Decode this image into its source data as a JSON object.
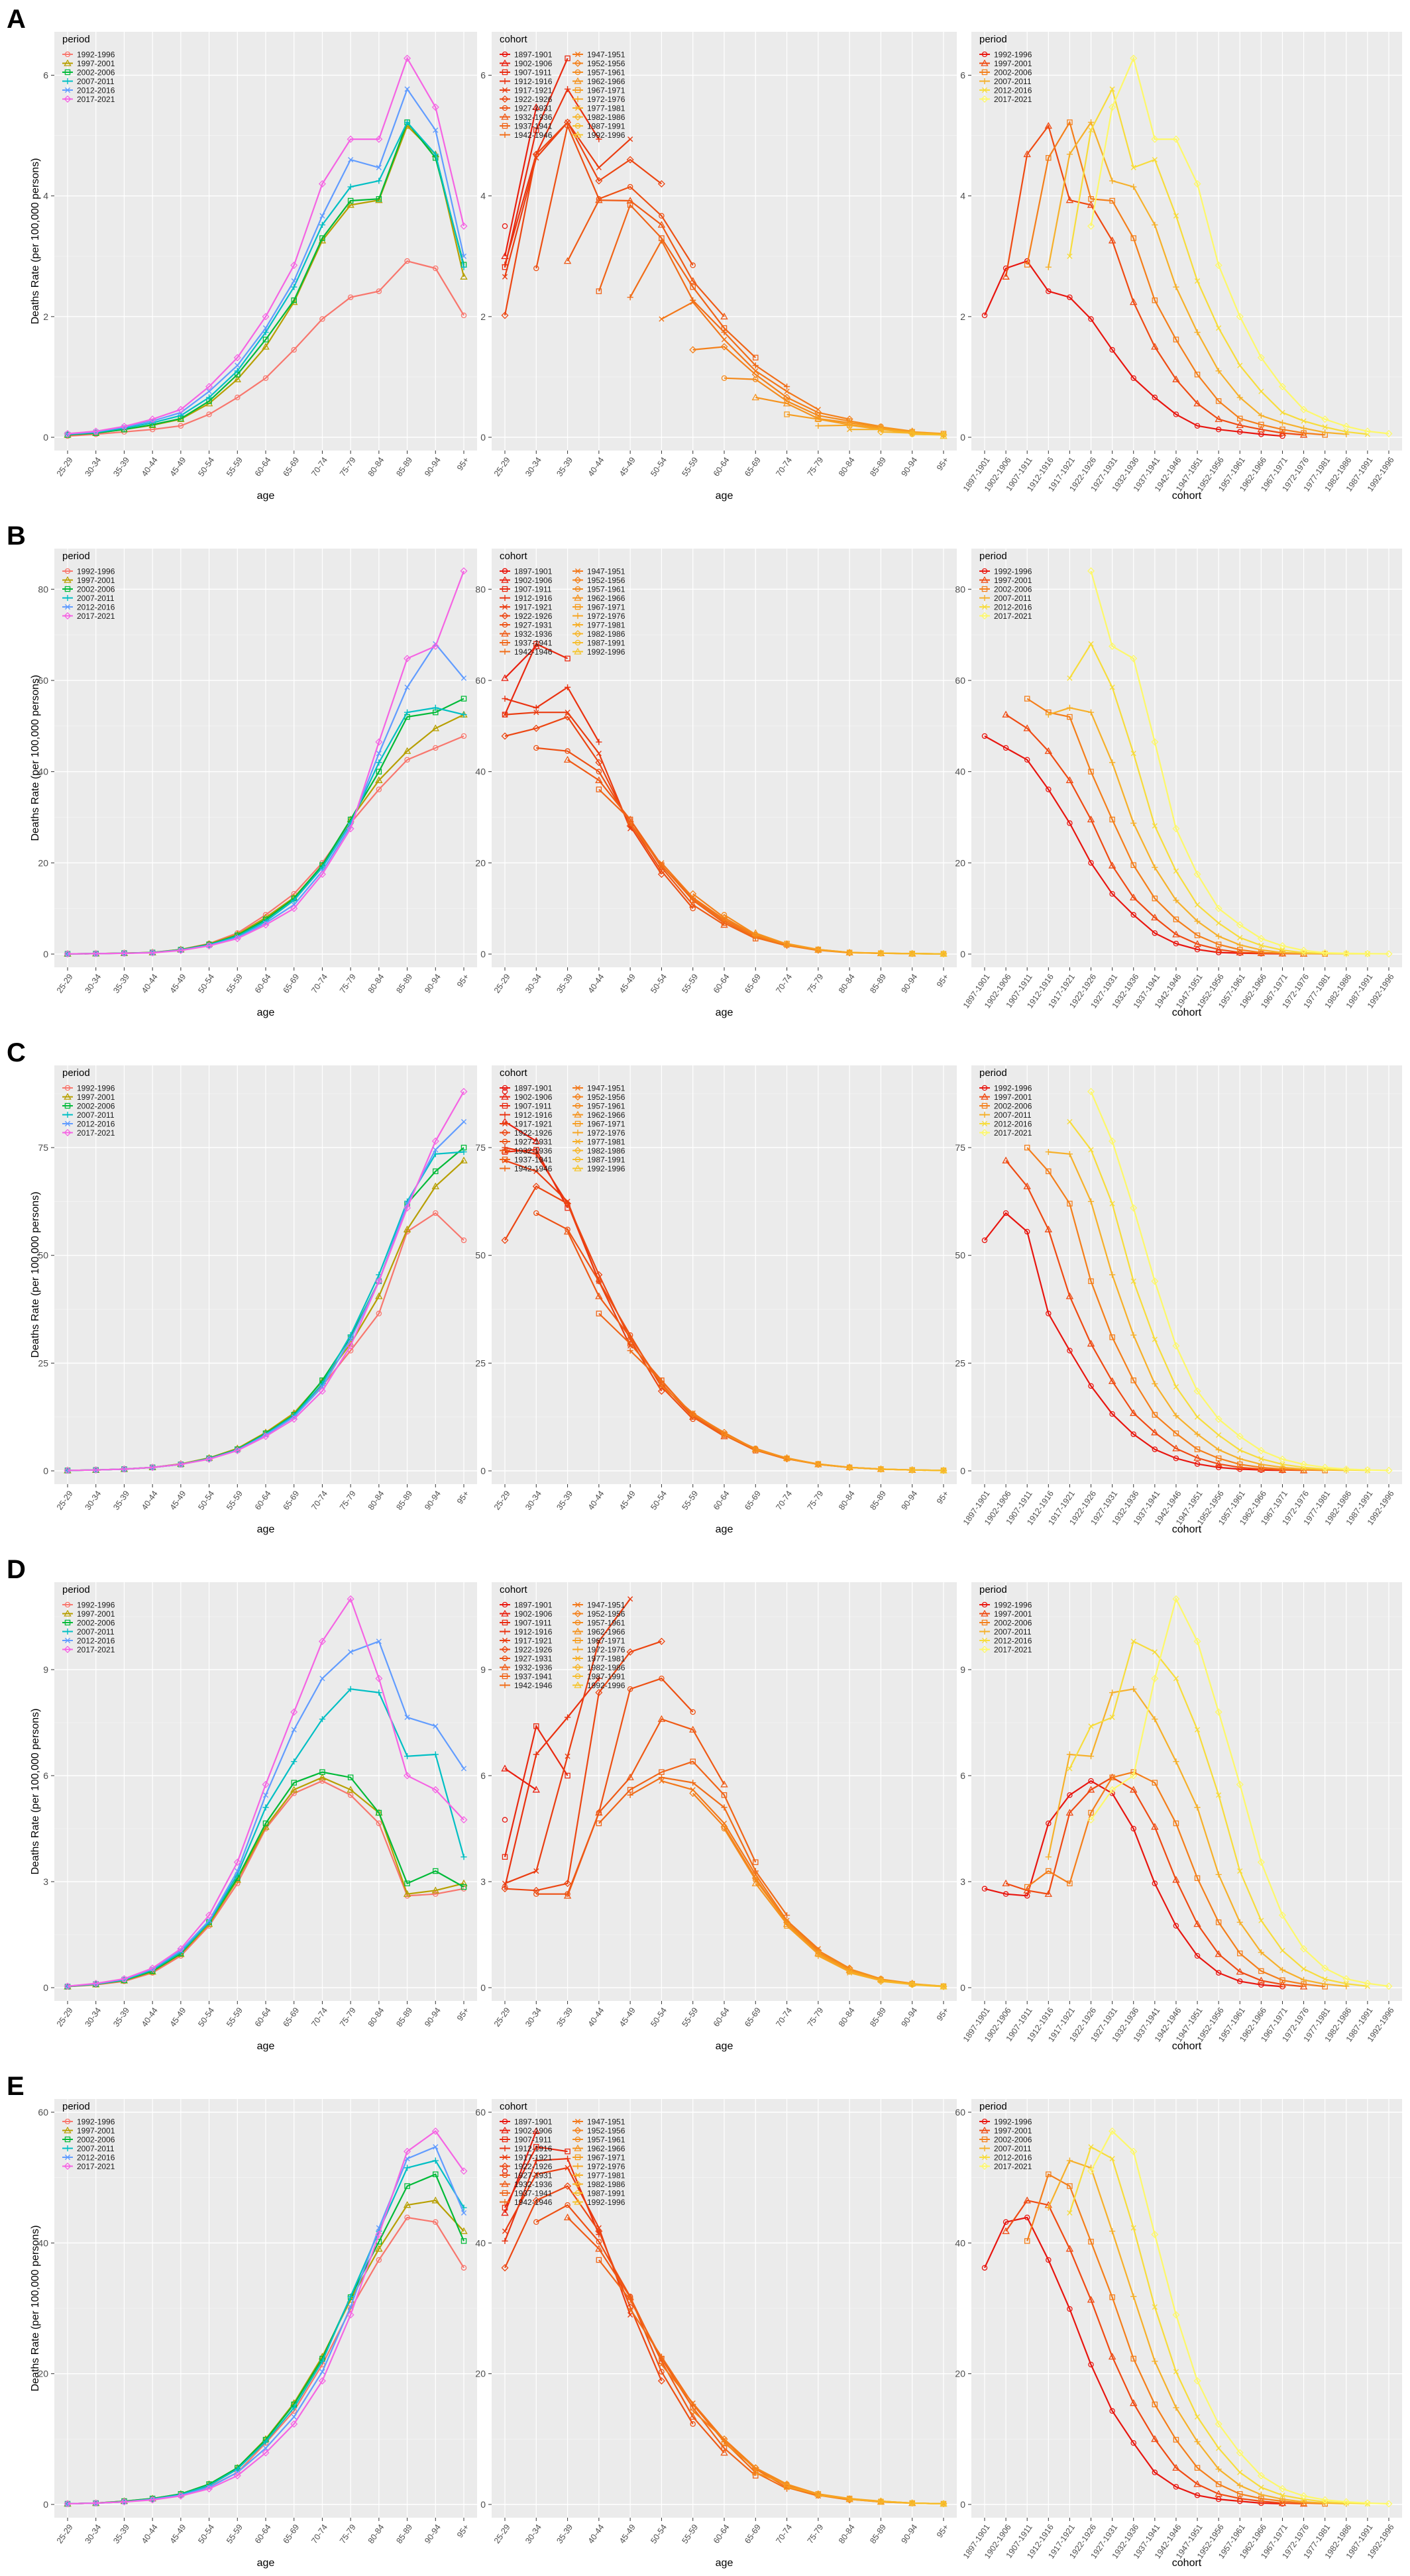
{
  "figure": {
    "common": {
      "age_groups": [
        "25-29",
        "30-34",
        "35-39",
        "40-44",
        "45-49",
        "50-54",
        "55-59",
        "60-64",
        "65-69",
        "70-74",
        "75-79",
        "80-84",
        "85-89",
        "90-94",
        "95+"
      ],
      "periods": [
        "1992-1996",
        "1997-2001",
        "2002-2006",
        "2007-2011",
        "2012-2016",
        "2017-2021"
      ],
      "cohorts": [
        "1897-1901",
        "1902-1906",
        "1907-1911",
        "1912-1916",
        "1917-1921",
        "1922-1926",
        "1927-1931",
        "1932-1936",
        "1937-1941",
        "1942-1946",
        "1947-1951",
        "1952-1956",
        "1957-1961",
        "1962-1966",
        "1967-1971",
        "1972-1976",
        "1977-1981",
        "1982-1986",
        "1987-1991",
        "1992-1996"
      ],
      "xlabels": {
        "age": "age",
        "cohort": "cohort"
      },
      "ylabel": "Deaths Rate (per 100,000 persons)",
      "legend_titles": {
        "period": "period",
        "cohort": "cohort"
      }
    },
    "colors": {
      "period_age_panel": [
        "#F8766D",
        "#B79F00",
        "#00BA38",
        "#00BFC4",
        "#619CFF",
        "#F564E3"
      ],
      "period_cohort_panel": [
        "#E8150F",
        "#EF4A12",
        "#F47E1A",
        "#F6B02A",
        "#F7DC3C",
        "#FDF86A"
      ],
      "cohort_gradient": [
        "#E8160F",
        "#EA3A10",
        "#F06016",
        "#F4841B",
        "#F7A823",
        "#F6C52D"
      ],
      "panel_bg": "#EBEBEB",
      "grid": "#FFFFFF"
    },
    "panels": [
      {
        "label": "A",
        "ymax": 6.5,
        "ticks": [
          0,
          2,
          4,
          6
        ],
        "rates": [
          [
            0.02,
            0.05,
            0.09,
            0.13,
            0.19,
            0.38,
            0.66,
            0.98,
            1.45,
            1.96,
            2.32,
            2.42,
            2.92,
            2.8,
            2.02
          ],
          [
            0.04,
            0.07,
            0.13,
            0.2,
            0.3,
            0.56,
            0.96,
            1.5,
            2.24,
            3.26,
            3.85,
            3.93,
            5.16,
            4.69,
            2.66
          ],
          [
            0.04,
            0.07,
            0.13,
            0.21,
            0.31,
            0.6,
            1.04,
            1.62,
            2.27,
            3.3,
            3.92,
            3.95,
            5.22,
            4.63,
            2.86
          ],
          [
            0.05,
            0.08,
            0.15,
            0.24,
            0.36,
            0.66,
            1.1,
            1.74,
            2.49,
            3.52,
            4.15,
            4.25,
            5.22,
            4.69,
            2.82
          ],
          [
            0.05,
            0.09,
            0.17,
            0.27,
            0.41,
            0.76,
            1.19,
            1.81,
            2.59,
            3.67,
            4.6,
            4.47,
            5.77,
            5.09,
            3.0
          ],
          [
            0.06,
            0.1,
            0.18,
            0.3,
            0.46,
            0.84,
            1.32,
            2.0,
            2.85,
            4.2,
            4.94,
            4.94,
            6.28,
            5.47,
            3.5
          ]
        ]
      },
      {
        "label": "B",
        "ymax": 86,
        "ticks": [
          0,
          20,
          40,
          60,
          80
        ],
        "rates": [
          [
            0.05,
            0.1,
            0.2,
            0.35,
            1.0,
            2.3,
            4.6,
            8.6,
            13.2,
            20.0,
            28.7,
            36.1,
            42.6,
            45.2,
            47.8
          ],
          [
            0.05,
            0.1,
            0.2,
            0.35,
            1.0,
            2.2,
            4.3,
            8.0,
            12.4,
            19.4,
            29.5,
            38.1,
            44.5,
            49.5,
            52.5
          ],
          [
            0.05,
            0.1,
            0.2,
            0.33,
            0.95,
            2.1,
            4.1,
            7.6,
            12.2,
            19.5,
            29.5,
            40.0,
            52.0,
            53.0,
            56.0
          ],
          [
            0.04,
            0.1,
            0.18,
            0.32,
            0.9,
            2.0,
            3.9,
            7.2,
            11.8,
            19.0,
            28.7,
            42.0,
            53.0,
            54.0,
            52.5
          ],
          [
            0.04,
            0.09,
            0.17,
            0.3,
            0.85,
            1.9,
            3.6,
            6.8,
            10.8,
            18.2,
            28.1,
            44.0,
            58.5,
            68.0,
            60.5
          ],
          [
            0.04,
            0.09,
            0.16,
            0.28,
            0.8,
            1.8,
            3.4,
            6.4,
            10.0,
            17.5,
            27.5,
            46.5,
            64.8,
            67.5,
            84.0
          ]
        ]
      },
      {
        "label": "C",
        "ymax": 91,
        "ticks": [
          0,
          25,
          50,
          75
        ],
        "rates": [
          [
            0.1,
            0.2,
            0.4,
            0.8,
            1.6,
            2.9,
            5.0,
            8.5,
            13.2,
            19.7,
            27.9,
            36.5,
            55.5,
            59.8,
            53.5
          ],
          [
            0.1,
            0.2,
            0.4,
            0.8,
            1.6,
            3.0,
            5.2,
            8.9,
            13.4,
            20.8,
            29.5,
            40.5,
            56.0,
            66.0,
            72.0
          ],
          [
            0.1,
            0.2,
            0.4,
            0.8,
            1.5,
            2.9,
            5.0,
            8.7,
            13.0,
            21.0,
            31.0,
            44.0,
            62.0,
            69.5,
            75.0
          ],
          [
            0.1,
            0.2,
            0.4,
            0.8,
            1.5,
            2.8,
            4.9,
            8.5,
            12.8,
            20.2,
            31.5,
            45.5,
            62.5,
            73.5,
            74.0
          ],
          [
            0.1,
            0.2,
            0.4,
            0.8,
            1.5,
            2.8,
            4.8,
            8.3,
            12.5,
            19.5,
            30.5,
            44.0,
            62.0,
            74.5,
            81.0
          ],
          [
            0.1,
            0.2,
            0.4,
            0.8,
            1.5,
            2.7,
            4.7,
            8.0,
            12.0,
            18.5,
            29.0,
            44.0,
            61.0,
            76.5,
            88.0
          ]
        ]
      },
      {
        "label": "D",
        "ymax": 11.1,
        "ticks": [
          0,
          3,
          6,
          9
        ],
        "rates": [
          [
            0.03,
            0.08,
            0.18,
            0.42,
            0.9,
            1.75,
            2.95,
            4.5,
            5.5,
            5.85,
            5.45,
            4.65,
            2.6,
            2.65,
            2.8
          ],
          [
            0.03,
            0.09,
            0.2,
            0.45,
            0.95,
            1.8,
            3.05,
            4.55,
            5.6,
            5.95,
            5.6,
            4.95,
            2.65,
            2.75,
            2.95
          ],
          [
            0.03,
            0.1,
            0.21,
            0.47,
            0.97,
            1.85,
            3.1,
            4.65,
            5.8,
            6.1,
            5.95,
            4.95,
            2.95,
            3.3,
            2.85
          ],
          [
            0.04,
            0.1,
            0.22,
            0.5,
            1.0,
            1.85,
            3.2,
            5.1,
            6.4,
            7.6,
            8.45,
            8.35,
            6.55,
            6.6,
            3.7
          ],
          [
            0.04,
            0.11,
            0.24,
            0.53,
            1.05,
            1.9,
            3.3,
            5.45,
            7.3,
            8.75,
            9.5,
            9.8,
            7.65,
            7.4,
            6.2
          ],
          [
            0.04,
            0.12,
            0.25,
            0.55,
            1.1,
            2.05,
            3.55,
            5.75,
            7.8,
            9.8,
            11.0,
            8.75,
            6.0,
            5.6,
            4.75
          ]
        ]
      },
      {
        "label": "E",
        "ymax": 60,
        "ticks": [
          0,
          20,
          40,
          60
        ],
        "rates": [
          [
            0.1,
            0.2,
            0.5,
            0.8,
            1.4,
            2.7,
            4.9,
            9.4,
            14.3,
            21.4,
            29.9,
            37.4,
            43.9,
            43.2,
            36.2
          ],
          [
            0.1,
            0.2,
            0.5,
            0.9,
            1.6,
            3.1,
            5.6,
            10.0,
            15.5,
            22.6,
            31.3,
            39.1,
            45.8,
            46.5,
            41.8
          ],
          [
            0.1,
            0.2,
            0.5,
            0.9,
            1.6,
            3.1,
            5.6,
            9.9,
            15.3,
            22.3,
            31.7,
            40.2,
            48.7,
            50.5,
            40.3
          ],
          [
            0.1,
            0.2,
            0.4,
            0.8,
            1.5,
            2.9,
            5.4,
            9.6,
            14.8,
            21.9,
            31.8,
            41.8,
            51.5,
            52.6,
            45.4
          ],
          [
            0.1,
            0.2,
            0.4,
            0.8,
            1.4,
            2.6,
            4.9,
            8.6,
            13.4,
            20.3,
            30.2,
            42.3,
            52.9,
            54.7,
            44.6
          ],
          [
            0.1,
            0.2,
            0.4,
            0.7,
            1.3,
            2.4,
            4.4,
            7.9,
            12.3,
            18.9,
            29.0,
            41.3,
            54.0,
            57.1,
            51.0
          ]
        ]
      }
    ]
  }
}
